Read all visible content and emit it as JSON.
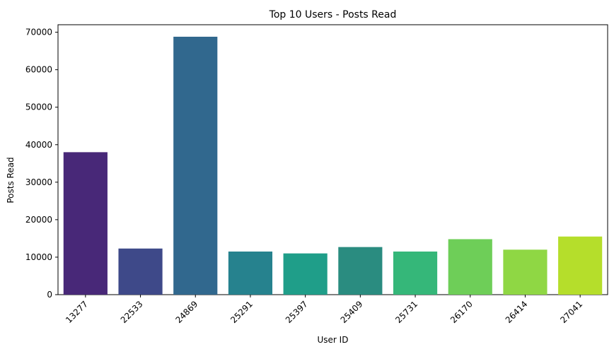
{
  "chart_data": {
    "type": "bar",
    "title": "Top 10 Users - Posts Read",
    "xlabel": "User ID",
    "ylabel": "Posts Read",
    "categories": [
      "13277",
      "22533",
      "24869",
      "25291",
      "25397",
      "25409",
      "25731",
      "26170",
      "26414",
      "27041"
    ],
    "values": [
      38000,
      12300,
      68800,
      11500,
      11000,
      12700,
      11500,
      14800,
      12000,
      15500
    ],
    "colors": [
      "#482878",
      "#3e4989",
      "#31688e",
      "#26828e",
      "#1f9e89",
      "#2a8c80",
      "#35b779",
      "#6ece58",
      "#8fd744",
      "#b5de2b"
    ],
    "ylim": [
      0,
      72000
    ],
    "yticks": [
      0,
      10000,
      20000,
      30000,
      40000,
      50000,
      60000,
      70000
    ],
    "grid": false,
    "legend": "none"
  }
}
